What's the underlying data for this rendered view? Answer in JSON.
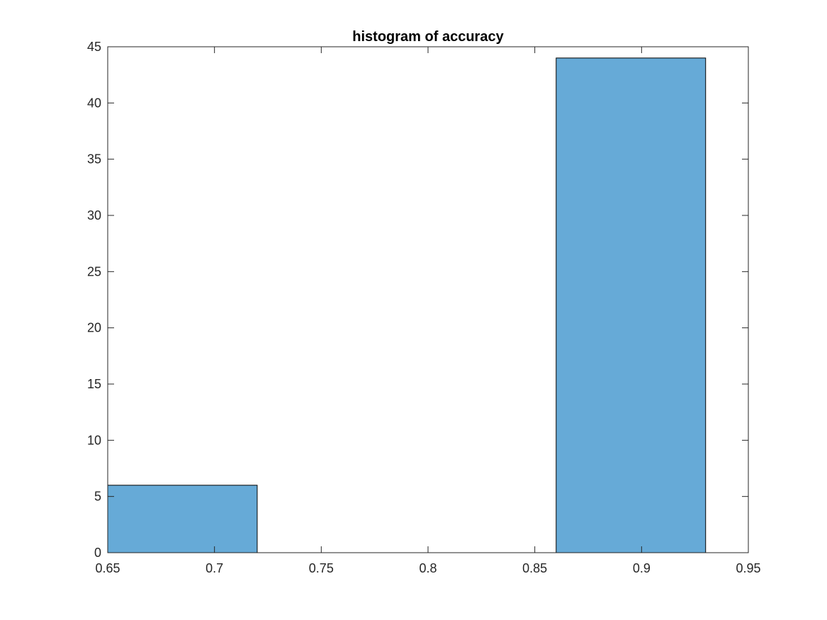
{
  "chart_data": {
    "type": "bar",
    "subtype": "histogram",
    "title": "histogram of accuracy",
    "xlabel": "",
    "ylabel": "",
    "xlim": [
      0.65,
      0.95
    ],
    "ylim": [
      0,
      45
    ],
    "bins": [
      {
        "x0": 0.65,
        "x1": 0.72,
        "count": 6
      },
      {
        "x0": 0.72,
        "x1": 0.79,
        "count": 0
      },
      {
        "x0": 0.79,
        "x1": 0.86,
        "count": 0
      },
      {
        "x0": 0.86,
        "x1": 0.93,
        "count": 44
      }
    ],
    "xticks": [
      "0.65",
      "0.7",
      "0.75",
      "0.8",
      "0.85",
      "0.9",
      "0.95"
    ],
    "yticks": [
      "0",
      "5",
      "10",
      "15",
      "20",
      "25",
      "30",
      "35",
      "40",
      "45"
    ],
    "bar_color": "#66AAD7",
    "grid": false,
    "legend": "none"
  }
}
